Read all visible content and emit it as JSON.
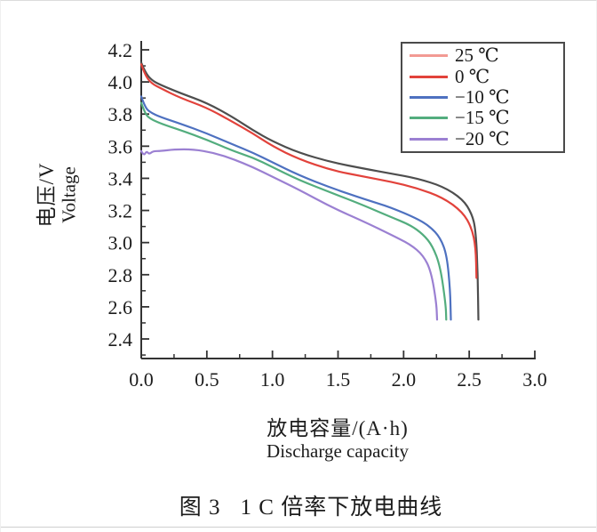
{
  "figure": {
    "caption_label": "图 3",
    "caption_text": "1 C 倍率下放电曲线"
  },
  "chart_data": {
    "type": "line",
    "title": "",
    "xlabel_zh": "放电容量/(A·h)",
    "xlabel_en": "Discharge capacity",
    "ylabel_zh": "电压/V",
    "ylabel_en": "Voltage",
    "xlim": [
      0.0,
      3.0
    ],
    "ylim": [
      2.4,
      4.2
    ],
    "grid": false,
    "x_axis": {
      "major_tick_labels": [
        "0.0",
        "0.5",
        "1.0",
        "1.5",
        "2.0",
        "2.5",
        "3.0"
      ],
      "major_tick_values": [
        0.0,
        0.5,
        1.0,
        1.5,
        2.0,
        2.5,
        3.0
      ],
      "minor_tick_values": [
        0.25,
        0.75,
        1.25,
        1.75,
        2.25,
        2.75
      ]
    },
    "y_axis": {
      "major_tick_labels": [
        "2.4",
        "2.6",
        "2.8",
        "3.0",
        "3.2",
        "3.4",
        "3.6",
        "3.8",
        "4.0",
        "4.2"
      ],
      "major_tick_values": [
        2.4,
        2.6,
        2.8,
        3.0,
        3.2,
        3.4,
        3.6,
        3.8,
        4.0,
        4.2
      ],
      "minor_tick_values": [
        2.3,
        2.5,
        2.7,
        2.9,
        3.1,
        3.3,
        3.5,
        3.7,
        3.9,
        4.1
      ]
    },
    "legend": {
      "position": "top-right",
      "entries": [
        {
          "label": "25 ℃",
          "swatch_color": "#f29a93"
        },
        {
          "label": "0 ℃",
          "swatch_color": "#e2423b"
        },
        {
          "label": "−10 ℃",
          "swatch_color": "#4e71c0"
        },
        {
          "label": "−15 ℃",
          "swatch_color": "#53ad7e"
        },
        {
          "label": "−20 ℃",
          "swatch_color": "#9b80d2"
        }
      ]
    },
    "series": [
      {
        "name": "25 ℃",
        "line_color": "#4e4e4e",
        "points": [
          [
            0,
            4.12
          ],
          [
            0.03,
            4.06
          ],
          [
            0.08,
            4.01
          ],
          [
            0.15,
            3.98
          ],
          [
            0.3,
            3.93
          ],
          [
            0.5,
            3.87
          ],
          [
            0.7,
            3.78
          ],
          [
            0.85,
            3.7
          ],
          [
            1.0,
            3.63
          ],
          [
            1.2,
            3.56
          ],
          [
            1.45,
            3.5
          ],
          [
            1.7,
            3.46
          ],
          [
            1.9,
            3.43
          ],
          [
            2.1,
            3.4
          ],
          [
            2.3,
            3.35
          ],
          [
            2.45,
            3.27
          ],
          [
            2.52,
            3.18
          ],
          [
            2.55,
            3.08
          ],
          [
            2.565,
            2.8
          ],
          [
            2.57,
            2.52
          ]
        ]
      },
      {
        "name": "0 ℃",
        "line_color": "#e2423b",
        "points": [
          [
            0,
            4.11
          ],
          [
            0.03,
            4.04
          ],
          [
            0.08,
            3.99
          ],
          [
            0.15,
            3.96
          ],
          [
            0.3,
            3.9
          ],
          [
            0.5,
            3.84
          ],
          [
            0.7,
            3.75
          ],
          [
            0.85,
            3.68
          ],
          [
            1.0,
            3.6
          ],
          [
            1.2,
            3.52
          ],
          [
            1.45,
            3.45
          ],
          [
            1.7,
            3.41
          ],
          [
            1.9,
            3.38
          ],
          [
            2.1,
            3.34
          ],
          [
            2.3,
            3.28
          ],
          [
            2.45,
            3.19
          ],
          [
            2.52,
            3.09
          ],
          [
            2.55,
            2.97
          ],
          [
            2.555,
            2.78
          ]
        ]
      },
      {
        "name": "−10 ℃",
        "line_color": "#4e71c0",
        "points": [
          [
            0,
            3.91
          ],
          [
            0.03,
            3.84
          ],
          [
            0.07,
            3.81
          ],
          [
            0.15,
            3.78
          ],
          [
            0.3,
            3.74
          ],
          [
            0.5,
            3.68
          ],
          [
            0.7,
            3.61
          ],
          [
            0.85,
            3.56
          ],
          [
            1.0,
            3.5
          ],
          [
            1.2,
            3.42
          ],
          [
            1.45,
            3.34
          ],
          [
            1.7,
            3.27
          ],
          [
            1.9,
            3.22
          ],
          [
            2.1,
            3.15
          ],
          [
            2.2,
            3.1
          ],
          [
            2.28,
            3.03
          ],
          [
            2.33,
            2.92
          ],
          [
            2.355,
            2.7
          ],
          [
            2.36,
            2.52
          ]
        ]
      },
      {
        "name": "−15 ℃",
        "line_color": "#53ad7e",
        "points": [
          [
            0,
            3.87
          ],
          [
            0.03,
            3.8
          ],
          [
            0.07,
            3.77
          ],
          [
            0.15,
            3.74
          ],
          [
            0.3,
            3.7
          ],
          [
            0.5,
            3.64
          ],
          [
            0.7,
            3.57
          ],
          [
            0.85,
            3.53
          ],
          [
            1.0,
            3.47
          ],
          [
            1.2,
            3.39
          ],
          [
            1.45,
            3.31
          ],
          [
            1.7,
            3.23
          ],
          [
            1.9,
            3.16
          ],
          [
            2.05,
            3.11
          ],
          [
            2.15,
            3.05
          ],
          [
            2.22,
            2.98
          ],
          [
            2.28,
            2.85
          ],
          [
            2.32,
            2.62
          ],
          [
            2.325,
            2.52
          ]
        ]
      },
      {
        "name": "−20 ℃",
        "line_color": "#9b80d2",
        "points": [
          [
            0,
            3.57
          ],
          [
            0.02,
            3.54
          ],
          [
            0.04,
            3.57
          ],
          [
            0.06,
            3.55
          ],
          [
            0.09,
            3.57
          ],
          [
            0.15,
            3.57
          ],
          [
            0.25,
            3.58
          ],
          [
            0.4,
            3.58
          ],
          [
            0.55,
            3.56
          ],
          [
            0.7,
            3.52
          ],
          [
            0.85,
            3.47
          ],
          [
            1.0,
            3.41
          ],
          [
            1.2,
            3.33
          ],
          [
            1.45,
            3.22
          ],
          [
            1.7,
            3.13
          ],
          [
            1.9,
            3.05
          ],
          [
            2.05,
            2.99
          ],
          [
            2.15,
            2.92
          ],
          [
            2.21,
            2.82
          ],
          [
            2.25,
            2.62
          ],
          [
            2.255,
            2.52
          ]
        ]
      }
    ]
  }
}
